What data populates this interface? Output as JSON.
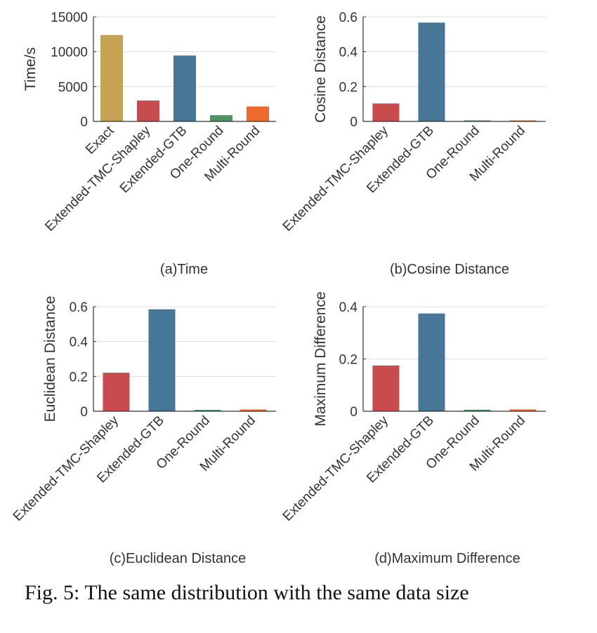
{
  "figure_caption": "Fig. 5: The same distribution with the same data size",
  "colors": {
    "Exact": "#c5a352",
    "Extended-TMC-Shapley": "#c84b4e",
    "Extended-GTB": "#467797",
    "One-Round": "#4f9466",
    "Multi-Round": "#ec6a2e",
    "grid": "#dddddd",
    "axis": "#333333"
  },
  "chart_data": [
    {
      "id": "a",
      "type": "bar",
      "title": "(a)Time",
      "xlabel": "",
      "ylabel": "Time/s",
      "categories": [
        "Exact",
        "Extended-TMC-Shapley",
        "Extended-GTB",
        "One-Round",
        "Multi-Round"
      ],
      "values": [
        12400,
        3000,
        9450,
        900,
        2150
      ],
      "ylim": [
        0,
        15000
      ],
      "yticks": [
        0,
        5000,
        10000,
        15000
      ],
      "ytick_labels": [
        "0",
        "5000",
        "10000",
        "15000"
      ],
      "grid": true
    },
    {
      "id": "b",
      "type": "bar",
      "title": "(b)Cosine Distance",
      "xlabel": "",
      "ylabel": "Cosine Distance",
      "categories": [
        "Extended-TMC-Shapley",
        "Extended-GTB",
        "One-Round",
        "Multi-Round"
      ],
      "values": [
        0.103,
        0.567,
        0.004,
        0.005
      ],
      "ylim": [
        0,
        0.6
      ],
      "yticks": [
        0,
        0.2,
        0.4,
        0.6
      ],
      "ytick_labels": [
        "0",
        "0.2",
        "0.4",
        "0.6"
      ],
      "grid": true
    },
    {
      "id": "c",
      "type": "bar",
      "title": "(c)Euclidean Distance",
      "xlabel": "",
      "ylabel": "Euclidean Distance",
      "categories": [
        "Extended-TMC-Shapley",
        "Extended-GTB",
        "One-Round",
        "Multi-Round"
      ],
      "values": [
        0.221,
        0.585,
        0.008,
        0.01
      ],
      "ylim": [
        0,
        0.6
      ],
      "yticks": [
        0,
        0.2,
        0.4,
        0.6
      ],
      "ytick_labels": [
        "0",
        "0.2",
        "0.4",
        "0.6"
      ],
      "grid": true
    },
    {
      "id": "d",
      "type": "bar",
      "title": "(d)Maximum Difference",
      "xlabel": "",
      "ylabel": "Maximum Difference",
      "categories": [
        "Extended-TMC-Shapley",
        "Extended-GTB",
        "One-Round",
        "Multi-Round"
      ],
      "values": [
        0.175,
        0.374,
        0.006,
        0.007
      ],
      "ylim": [
        0,
        0.4
      ],
      "yticks": [
        0,
        0.2,
        0.4
      ],
      "ytick_labels": [
        "0",
        "0.2",
        "0.4"
      ],
      "grid": true
    }
  ]
}
